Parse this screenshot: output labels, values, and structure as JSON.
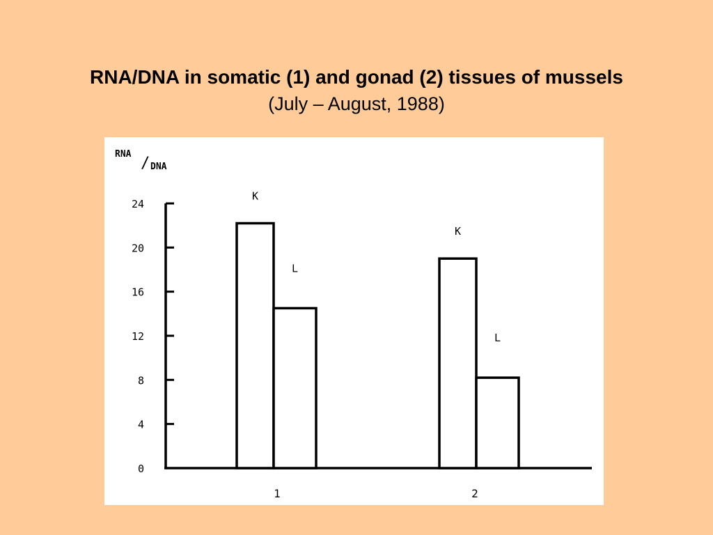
{
  "slide": {
    "title": "RNA/DNA in somatic (1) and gonad (2) tissues of mussels",
    "subtitle": "(July – August, 1988)"
  },
  "colors": {
    "background": "#FFCC99",
    "panel": "#ffffff",
    "ink": "#000000"
  },
  "chart_data": {
    "type": "bar",
    "ylabel_num": "RNA",
    "ylabel_den": "DNA",
    "ylabel_sep": "/",
    "ylim": [
      0,
      24
    ],
    "yticks": [
      0,
      4,
      8,
      12,
      16,
      20,
      24
    ],
    "ytick_labels": [
      "0",
      "4",
      "8",
      "12",
      "16",
      "20",
      "24"
    ],
    "categories": [
      "1",
      "2"
    ],
    "series": [
      {
        "name": "K",
        "values": [
          22.2,
          19.0
        ]
      },
      {
        "name": "L",
        "values": [
          14.5,
          8.2
        ]
      }
    ],
    "grid": false,
    "legend": "none"
  }
}
